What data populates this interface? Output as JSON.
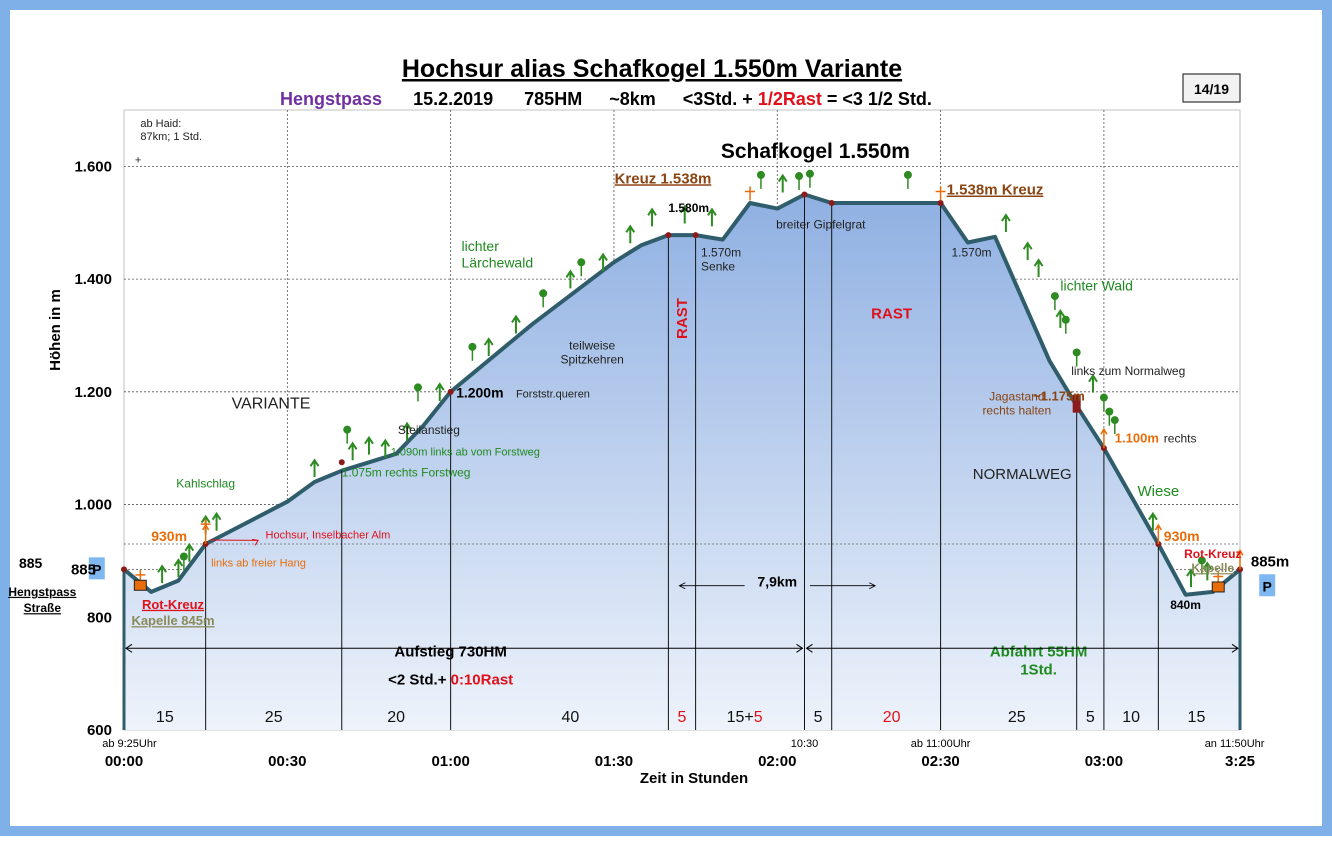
{
  "header": {
    "title": "Hochsur alias Schafkogel 1.550m Variante",
    "subtitle_place": "Hengstpass",
    "subtitle_date": "15.2.2019",
    "subtitle_hm": "785HM",
    "subtitle_km": "~8km",
    "subtitle_time_a": "<3Std. + ",
    "subtitle_time_rast": "1/2Rast",
    "subtitle_time_b": " = <3 1/2 Std.",
    "page_badge": "14/19"
  },
  "colors": {
    "frame": "#7fb0e8",
    "fill_top": "#8fb0e2",
    "fill_bottom": "#eef3fb",
    "profile": "#2f5d6b",
    "tree": "#2e8b22",
    "green_text": "#1f8a1f",
    "red_text": "#e0101a",
    "purple": "#7030a0",
    "brown": "#8b4513",
    "orange": "#e86c0a",
    "olive": "#8a8a5a",
    "parking": "#7fb8f0"
  },
  "chart_data": {
    "type": "area",
    "x_unit": "minutes since 00:00",
    "xlim": [
      0,
      205
    ],
    "ylim": [
      600,
      1700
    ],
    "grid": true,
    "xlabel": "Zeit in Stunden",
    "ylabel": "Höhen in m",
    "x_ticks": [
      {
        "x": 0,
        "label": "00:00"
      },
      {
        "x": 30,
        "label": "00:30"
      },
      {
        "x": 60,
        "label": "01:00"
      },
      {
        "x": 90,
        "label": "01:30"
      },
      {
        "x": 120,
        "label": "02:00"
      },
      {
        "x": 150,
        "label": "02:30"
      },
      {
        "x": 180,
        "label": "03:00"
      },
      {
        "x": 205,
        "label": "3:25"
      }
    ],
    "y_ticks": [
      {
        "y": 600,
        "label": "600"
      },
      {
        "y": 800,
        "label": "800"
      },
      {
        "y": 885,
        "label": "885"
      },
      {
        "y": 1000,
        "label": "1.000"
      },
      {
        "y": 1200,
        "label": "1.200"
      },
      {
        "y": 1400,
        "label": "1.400"
      },
      {
        "y": 1600,
        "label": "1.600"
      }
    ],
    "profile": [
      [
        0,
        885
      ],
      [
        5,
        845
      ],
      [
        10,
        865
      ],
      [
        15,
        930
      ],
      [
        30,
        1005
      ],
      [
        35,
        1040
      ],
      [
        40,
        1060
      ],
      [
        45,
        1075
      ],
      [
        50,
        1090
      ],
      [
        55,
        1140
      ],
      [
        60,
        1200
      ],
      [
        75,
        1320
      ],
      [
        90,
        1430
      ],
      [
        95,
        1460
      ],
      [
        100,
        1478
      ],
      [
        105,
        1478
      ],
      [
        110,
        1470
      ],
      [
        115,
        1535
      ],
      [
        120,
        1525
      ],
      [
        125,
        1550
      ],
      [
        130,
        1535
      ],
      [
        135,
        1535
      ],
      [
        140,
        1535
      ],
      [
        145,
        1535
      ],
      [
        150,
        1535
      ],
      [
        155,
        1465
      ],
      [
        160,
        1475
      ],
      [
        170,
        1255
      ],
      [
        175,
        1175
      ],
      [
        180,
        1100
      ],
      [
        190,
        930
      ],
      [
        195,
        840
      ],
      [
        200,
        845
      ],
      [
        205,
        885
      ]
    ],
    "markers": [
      {
        "x": 0,
        "y": 885
      },
      {
        "x": 15,
        "y": 930
      },
      {
        "x": 40,
        "y": 1075
      },
      {
        "x": 60,
        "y": 1200
      },
      {
        "x": 100,
        "y": 1478
      },
      {
        "x": 105,
        "y": 1478
      },
      {
        "x": 125,
        "y": 1550
      },
      {
        "x": 130,
        "y": 1535
      },
      {
        "x": 150,
        "y": 1535
      },
      {
        "x": 175,
        "y": 1175
      },
      {
        "x": 180,
        "y": 1100
      },
      {
        "x": 190,
        "y": 930
      },
      {
        "x": 205,
        "y": 885
      }
    ],
    "segment_lines": [
      15,
      40,
      60,
      100,
      105,
      125,
      130,
      150,
      175,
      180,
      190
    ],
    "segments": [
      {
        "x": 7.5,
        "label": "15",
        "red": false
      },
      {
        "x": 27.5,
        "label": "25",
        "red": false
      },
      {
        "x": 50,
        "label": "20",
        "red": false
      },
      {
        "x": 82,
        "label": "40",
        "red": false
      },
      {
        "x": 102.5,
        "label": "5",
        "red": true
      },
      {
        "x": 114,
        "label": "15+",
        "red": false,
        "extra": "5"
      },
      {
        "x": 127.5,
        "label": "5",
        "red": false
      },
      {
        "x": 141,
        "label": "20",
        "red": true
      },
      {
        "x": 164,
        "label": "25",
        "red": false
      },
      {
        "x": 177.5,
        "label": "5",
        "red": false
      },
      {
        "x": 185,
        "label": "10",
        "red": false
      },
      {
        "x": 197,
        "label": "15",
        "red": false
      }
    ],
    "small_times": [
      {
        "x": 1,
        "label": "ab 9:25Uhr"
      },
      {
        "x": 125,
        "label": "10:30"
      },
      {
        "x": 150,
        "label": "ab 11:00Uhr"
      },
      {
        "x": 204,
        "label": "an 11:50Uhr"
      }
    ],
    "trees_up": [
      [
        7,
        857
      ],
      [
        10,
        868
      ],
      [
        12,
        895
      ],
      [
        15,
        945
      ],
      [
        17,
        950
      ],
      [
        35,
        1045
      ],
      [
        42,
        1075
      ],
      [
        45,
        1085
      ],
      [
        48,
        1080
      ],
      [
        52,
        1110
      ],
      [
        58,
        1180
      ],
      [
        67,
        1260
      ],
      [
        72,
        1300
      ],
      [
        82,
        1380
      ],
      [
        88,
        1410
      ],
      [
        93,
        1460
      ],
      [
        97,
        1490
      ],
      [
        103,
        1495
      ],
      [
        108,
        1490
      ],
      [
        121,
        1550
      ],
      [
        162,
        1480
      ],
      [
        166,
        1430
      ],
      [
        168,
        1400
      ],
      [
        172,
        1310
      ],
      [
        178,
        1195
      ],
      [
        189,
        950
      ],
      [
        196,
        850
      ],
      [
        199,
        862
      ]
    ],
    "trees_round": [
      [
        11,
        883
      ],
      [
        41,
        1108
      ],
      [
        54,
        1183
      ],
      [
        64,
        1255
      ],
      [
        77,
        1350
      ],
      [
        84,
        1405
      ],
      [
        124,
        1558
      ],
      [
        126,
        1562
      ],
      [
        117,
        1560
      ],
      [
        144,
        1560
      ],
      [
        171,
        1345
      ],
      [
        173,
        1303
      ],
      [
        175,
        1245
      ],
      [
        180,
        1165
      ],
      [
        182,
        1125
      ],
      [
        181,
        1140
      ],
      [
        198,
        876
      ]
    ],
    "crosses": [
      [
        3,
        870
      ],
      [
        15,
        960
      ],
      [
        115,
        1550
      ],
      [
        150,
        1550
      ],
      [
        201,
        867
      ]
    ],
    "chapels": [
      [
        3,
        855
      ],
      [
        201,
        852
      ]
    ],
    "orange_poles": [
      [
        15,
        930
      ],
      [
        180,
        1100
      ],
      [
        190,
        930
      ],
      [
        205,
        885
      ]
    ],
    "annotations": [
      {
        "x": 3,
        "y": 1670,
        "lines": [
          "ab Haid:",
          "87km; 1 Std."
        ],
        "size": 11,
        "color": "#222222",
        "weight": "normal",
        "anchor": "start"
      },
      {
        "x": 2,
        "y": 1605,
        "lines": [
          "+"
        ],
        "size": 11,
        "color": "#222222",
        "weight": "normal",
        "anchor": "start"
      },
      {
        "x": 27,
        "y": 1170,
        "lines": [
          "VARIANTE"
        ],
        "size": 16,
        "color": "#222222",
        "weight": "normal",
        "anchor": "middle"
      },
      {
        "x": 15,
        "y": 1030,
        "lines": [
          "Kahlschlag"
        ],
        "size": 12,
        "color": "#1f8a1f",
        "weight": "normal",
        "anchor": "middle"
      },
      {
        "x": 5,
        "y": 935,
        "lines": [
          "930m"
        ],
        "size": 14,
        "color": "#e86c0a",
        "weight": "bold",
        "anchor": "start"
      },
      {
        "x": 26,
        "y": 940,
        "lines": [
          "Hochsur, Inselbacher Alm"
        ],
        "size": 11,
        "color": "#e0101a",
        "weight": "normal",
        "anchor": "start"
      },
      {
        "x": 16,
        "y": 890,
        "lines": [
          "links ab freier Hang"
        ],
        "size": 11,
        "color": "#e86c0a",
        "weight": "normal",
        "anchor": "start"
      },
      {
        "x": -15,
        "y": 887,
        "lines": [
          "885"
        ],
        "size": 14,
        "color": "#000000",
        "weight": "bold",
        "anchor": "end"
      },
      {
        "x": -15,
        "y": 838,
        "lines": [
          "Hengstpass"
        ],
        "size": 12,
        "color": "#000000",
        "weight": "bold",
        "anchor": "middle",
        "underline": true
      },
      {
        "x": -15,
        "y": 809,
        "lines": [
          "Straße"
        ],
        "size": 12,
        "color": "#000000",
        "weight": "bold",
        "anchor": "middle",
        "underline": true
      },
      {
        "x": 9,
        "y": 815,
        "lines": [
          "Rot-Kreuz"
        ],
        "size": 13,
        "color": "#e0101a",
        "weight": "bold",
        "anchor": "middle",
        "underline": true
      },
      {
        "x": 9,
        "y": 786,
        "lines": [
          "Kapelle 845m"
        ],
        "size": 13,
        "color": "#8a8a5a",
        "weight": "bold",
        "anchor": "middle",
        "underline": true
      },
      {
        "x": 56,
        "y": 1125,
        "lines": [
          "Steilanstieg"
        ],
        "size": 12,
        "color": "#222222",
        "weight": "normal",
        "anchor": "middle"
      },
      {
        "x": 49,
        "y": 1087,
        "lines": [
          "1.090m links ab vom Forstweg"
        ],
        "size": 11,
        "color": "#1f8a1f",
        "weight": "normal",
        "anchor": "start"
      },
      {
        "x": 40,
        "y": 1050,
        "lines": [
          "1.075m rechts Forstweg"
        ],
        "size": 12,
        "color": "#1f8a1f",
        "weight": "normal",
        "anchor": "start"
      },
      {
        "x": 61,
        "y": 1190,
        "lines": [
          "1.200m"
        ],
        "size": 14,
        "color": "#000000",
        "weight": "bold",
        "anchor": "start"
      },
      {
        "x": 72,
        "y": 1190,
        "lines": [
          "Forststr.queren"
        ],
        "size": 11,
        "color": "#222222",
        "weight": "normal",
        "anchor": "start"
      },
      {
        "x": 62,
        "y": 1450,
        "lines": [
          "lichter",
          "Lärchewald"
        ],
        "size": 14,
        "color": "#1f8a1f",
        "weight": "normal",
        "anchor": "start"
      },
      {
        "x": 86,
        "y": 1275,
        "lines": [
          "teilweise",
          "Spitzkehren"
        ],
        "size": 12,
        "color": "#222222",
        "weight": "normal",
        "anchor": "middle"
      },
      {
        "x": 100,
        "y": 1480,
        "lines": [
          "1.580m"
        ],
        "size": 12,
        "color": "#000000",
        "weight": "bold",
        "anchor": "start",
        "dy": -22
      },
      {
        "x": 106,
        "y": 1440,
        "lines": [
          "1.570m",
          "Senke"
        ],
        "size": 12,
        "color": "#222222",
        "weight": "normal",
        "anchor": "start"
      },
      {
        "x": 99,
        "y": 1570,
        "lines": [
          "Kreuz 1.538m"
        ],
        "size": 15,
        "color": "#8b4513",
        "weight": "bold",
        "anchor": "middle",
        "underline": true
      },
      {
        "x": 127,
        "y": 1615,
        "lines": [
          "Schafkogel 1.550m"
        ],
        "size": 21,
        "color": "#000000",
        "weight": "bold",
        "anchor": "middle"
      },
      {
        "x": 128,
        "y": 1490,
        "lines": [
          "breiter Gipfelgrat"
        ],
        "size": 12,
        "color": "#222222",
        "weight": "normal",
        "anchor": "middle"
      },
      {
        "x": 160,
        "y": 1550,
        "lines": [
          "1.538m Kreuz"
        ],
        "size": 15,
        "color": "#8b4513",
        "weight": "bold",
        "anchor": "middle",
        "underline": true
      },
      {
        "x": 152,
        "y": 1440,
        "lines": [
          "1.570m"
        ],
        "size": 12,
        "color": "#222222",
        "weight": "normal",
        "anchor": "start"
      },
      {
        "x": 141,
        "y": 1330,
        "lines": [
          "RAST"
        ],
        "size": 15,
        "color": "#e0101a",
        "weight": "bold",
        "anchor": "middle"
      },
      {
        "x": 172,
        "y": 1380,
        "lines": [
          "lichter Wald"
        ],
        "size": 14,
        "color": "#1f8a1f",
        "weight": "normal",
        "anchor": "start"
      },
      {
        "x": 174,
        "y": 1230,
        "lines": [
          "links zum Normalweg"
        ],
        "size": 12,
        "color": "#222222",
        "weight": "normal",
        "anchor": "start"
      },
      {
        "x": 164,
        "y": 1185,
        "lines": [
          "Jagastand",
          "rechts halten"
        ],
        "size": 12,
        "color": "#8b4513",
        "weight": "normal",
        "anchor": "middle"
      },
      {
        "x": 167,
        "y": 1185,
        "lines": [
          "~1.175m"
        ],
        "size": 13,
        "color": "#8b4513",
        "weight": "bold",
        "anchor": "start"
      },
      {
        "x": 182,
        "y": 1110,
        "lines": [
          "1.100m"
        ],
        "size": 13,
        "color": "#e86c0a",
        "weight": "bold",
        "anchor": "start"
      },
      {
        "x": 191,
        "y": 1110,
        "lines": [
          "rechts"
        ],
        "size": 12,
        "color": "#222222",
        "weight": "normal",
        "anchor": "start"
      },
      {
        "x": 165,
        "y": 1045,
        "lines": [
          "NORMALWEG"
        ],
        "size": 15,
        "color": "#222222",
        "weight": "normal",
        "anchor": "middle"
      },
      {
        "x": 190,
        "y": 1015,
        "lines": [
          "Wiese"
        ],
        "size": 15,
        "color": "#1f8a1f",
        "weight": "normal",
        "anchor": "middle"
      },
      {
        "x": 191,
        "y": 935,
        "lines": [
          "930m"
        ],
        "size": 14,
        "color": "#e86c0a",
        "weight": "bold",
        "anchor": "start"
      },
      {
        "x": 200,
        "y": 905,
        "lines": [
          "Rot-Kreuz"
        ],
        "size": 12,
        "color": "#e0101a",
        "weight": "bold",
        "anchor": "middle"
      },
      {
        "x": 200,
        "y": 880,
        "lines": [
          "Kapelle"
        ],
        "size": 12,
        "color": "#8a8a5a",
        "weight": "bold",
        "anchor": "middle",
        "underline": true
      },
      {
        "x": 195,
        "y": 815,
        "lines": [
          "840m"
        ],
        "size": 12,
        "color": "#000000",
        "weight": "bold",
        "anchor": "middle"
      },
      {
        "x": 207,
        "y": 890,
        "lines": [
          "885m"
        ],
        "size": 15,
        "color": "#000000",
        "weight": "bold",
        "anchor": "start"
      },
      {
        "x": 120,
        "y": 855,
        "lines": [
          "7,9km"
        ],
        "size": 14,
        "color": "#000000",
        "weight": "bold",
        "anchor": "middle"
      },
      {
        "x": 60,
        "y": 730,
        "lines": [
          "Aufstieg 730HM"
        ],
        "size": 15,
        "color": "#000000",
        "weight": "bold",
        "anchor": "middle"
      },
      {
        "x": 168,
        "y": 730,
        "lines": [
          "Abfahrt 55HM",
          "1Std."
        ],
        "size": 15,
        "color": "#1f8a1f",
        "weight": "bold",
        "anchor": "middle"
      }
    ],
    "aufstieg_time_a": "<2 Std.+ ",
    "aufstieg_time_b": "0:10Rast",
    "rast_vertical": "RAST",
    "parking_label": "P"
  }
}
